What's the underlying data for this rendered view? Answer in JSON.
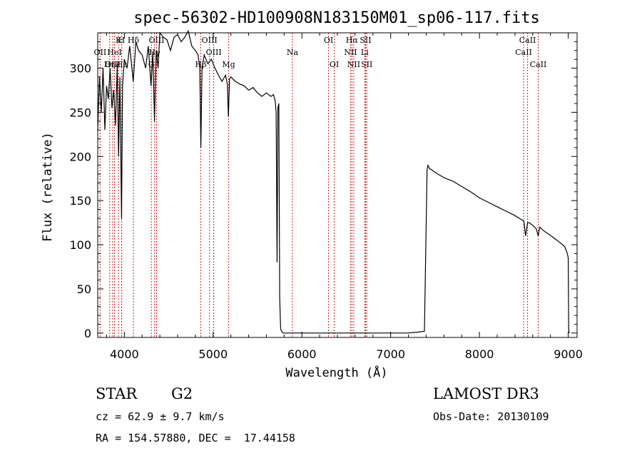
{
  "chart_data": {
    "type": "line",
    "title": "spec-56302-HD100908N183150M01_sp06-117.fits",
    "xlabel": "Wavelength (Å)",
    "ylabel": "Flux (relative)",
    "xlim": [
      3700,
      9100
    ],
    "ylim": [
      -5,
      340
    ],
    "xticks": [
      4000,
      5000,
      6000,
      7000,
      8000,
      9000
    ],
    "yticks": [
      0,
      50,
      100,
      150,
      200,
      250,
      300
    ],
    "series": [
      {
        "name": "flux",
        "x": [
          3700,
          3720,
          3740,
          3760,
          3780,
          3800,
          3820,
          3840,
          3860,
          3880,
          3900,
          3920,
          3935,
          3950,
          3968,
          3980,
          4000,
          4030,
          4060,
          4100,
          4130,
          4160,
          4200,
          4240,
          4270,
          4300,
          4320,
          4340,
          4360,
          4380,
          4400,
          4440,
          4480,
          4520,
          4560,
          4600,
          4640,
          4680,
          4720,
          4760,
          4800,
          4830,
          4850,
          4862,
          4875,
          4900,
          4940,
          4980,
          5020,
          5060,
          5100,
          5140,
          5160,
          5172,
          5185,
          5200,
          5250,
          5300,
          5350,
          5400,
          5450,
          5500,
          5550,
          5600,
          5650,
          5680,
          5700,
          5710,
          5720,
          5730,
          5740,
          5750,
          5760,
          5770,
          5790,
          5800,
          5900,
          6000,
          6200,
          6400,
          6600,
          6800,
          7000,
          7200,
          7300,
          7380,
          7410,
          7420,
          7430,
          7440,
          7460,
          7500,
          7600,
          7700,
          7800,
          7900,
          8000,
          8100,
          8200,
          8300,
          8400,
          8480,
          8500,
          8520,
          8542,
          8560,
          8600,
          8640,
          8662,
          8680,
          8720,
          8780,
          8820,
          8860,
          8900,
          8960,
          8990,
          9000,
          9005,
          9010
        ],
        "values": [
          230,
          290,
          250,
          300,
          230,
          280,
          265,
          300,
          255,
          275,
          235,
          305,
          200,
          290,
          130,
          280,
          310,
          300,
          325,
          285,
          330,
          320,
          315,
          300,
          325,
          280,
          318,
          240,
          320,
          300,
          340,
          335,
          332,
          320,
          335,
          338,
          330,
          335,
          342,
          325,
          320,
          315,
          300,
          210,
          300,
          315,
          305,
          310,
          300,
          292,
          285,
          292,
          282,
          245,
          288,
          290,
          285,
          282,
          280,
          275,
          278,
          272,
          268,
          272,
          268,
          270,
          262,
          250,
          80,
          255,
          260,
          40,
          5,
          2,
          0,
          0,
          0,
          0,
          0,
          0,
          0,
          0,
          0,
          0,
          1,
          2,
          185,
          190,
          188,
          186,
          185,
          182,
          176,
          172,
          166,
          160,
          153,
          148,
          143,
          138,
          133,
          128,
          127,
          110,
          125,
          125,
          122,
          118,
          110,
          120,
          116,
          112,
          109,
          106,
          103,
          98,
          90,
          85,
          5,
          0
        ]
      }
    ],
    "lines": [
      {
        "label": "Hδ",
        "wl": 4102,
        "row": 0
      },
      {
        "label": "K",
        "wl": 3934,
        "row": 0
      },
      {
        "label": "H",
        "wl": 3969,
        "row": 0
      },
      {
        "label": "OIII",
        "wl": 4363,
        "row": 0
      },
      {
        "label": "OIII",
        "wl": 4959,
        "row": 0
      },
      {
        "label": "OI",
        "wl": 6300,
        "row": 0
      },
      {
        "label": "Hα",
        "wl": 6563,
        "row": 0
      },
      {
        "label": "SII",
        "wl": 6717,
        "row": 0
      },
      {
        "label": "CaII",
        "wl": 8542,
        "row": 0
      },
      {
        "label": "OII",
        "wl": 3727,
        "row": 1
      },
      {
        "label": "HeI",
        "wl": 3889,
        "row": 1
      },
      {
        "label": "Hγ",
        "wl": 4340,
        "row": 1
      },
      {
        "label": "OIII",
        "wl": 5007,
        "row": 1
      },
      {
        "label": "Na",
        "wl": 5893,
        "row": 1
      },
      {
        "label": "NII",
        "wl": 6548,
        "row": 1
      },
      {
        "label": "Li",
        "wl": 6708,
        "row": 1
      },
      {
        "label": "CaII",
        "wl": 8498,
        "row": 1
      },
      {
        "label": "OIII",
        "wl": 3869,
        "row": 2
      },
      {
        "label": "Hη",
        "wl": 3835,
        "row": 2
      },
      {
        "label": "Hε",
        "wl": 3970,
        "row": 2
      },
      {
        "label": "G",
        "wl": 4304,
        "row": 2
      },
      {
        "label": "Hβ",
        "wl": 4861,
        "row": 2
      },
      {
        "label": "Mg",
        "wl": 5175,
        "row": 2
      },
      {
        "label": "OI",
        "wl": 6364,
        "row": 2
      },
      {
        "label": "NII",
        "wl": 6584,
        "row": 2
      },
      {
        "label": "SII",
        "wl": 6731,
        "row": 2
      },
      {
        "label": "CaII",
        "wl": 8662,
        "row": 2
      }
    ]
  },
  "info": {
    "class_label": "STAR",
    "subclass": "G2",
    "cz": "cz = 62.9 ± 9.7 km/s",
    "coords": "RA = 154.57880, DEC =  17.44158",
    "survey": "LAMOST DR3",
    "obs_date": "Obs-Date: 20130109"
  },
  "colors": {
    "line_marker": "#cc2222",
    "spectrum": "#000000"
  }
}
